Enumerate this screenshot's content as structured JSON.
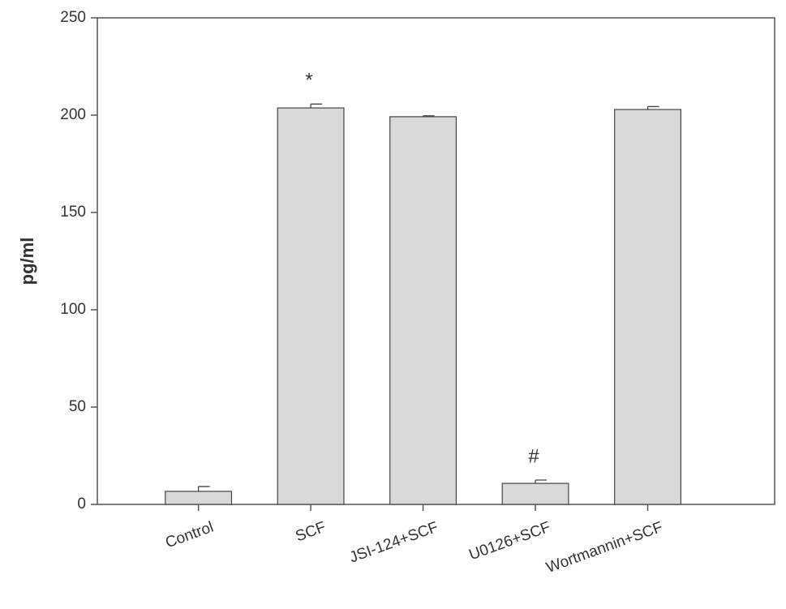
{
  "chart_data": {
    "type": "bar",
    "y_label": "pg/ml",
    "categories": [
      "Control",
      "SCF",
      "JSI-124+SCF",
      "U0126+SCF",
      "Wortmannin+SCF"
    ],
    "values": [
      6.7,
      203.7,
      199.2,
      10.8,
      202.9
    ],
    "errors": [
      2.5,
      2,
      0.5,
      1.7,
      1.5
    ],
    "annotations": [
      null,
      "*",
      null,
      "#",
      null
    ],
    "color": "#d9d9d9",
    "ylim": [
      0,
      250
    ],
    "yticks": [
      0,
      50,
      100,
      150,
      200,
      250
    ],
    "grid": false
  }
}
